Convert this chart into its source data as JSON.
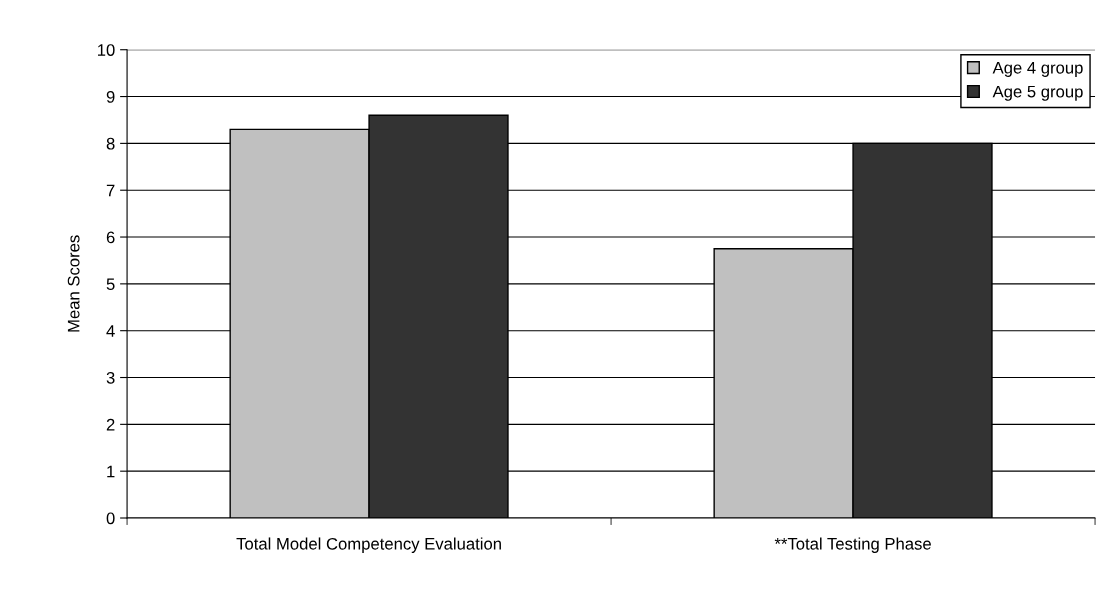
{
  "chart_data": {
    "type": "bar",
    "ylabel": "Mean Scores",
    "categories": [
      "Total Model Competency Evaluation",
      "**Total Testing Phase"
    ],
    "series": [
      {
        "name": "Age 4 group",
        "color": "#c0c0c0",
        "values": [
          8.3,
          5.75
        ]
      },
      {
        "name": "Age 5 group",
        "color": "#333333",
        "values": [
          8.6,
          8.0
        ]
      }
    ],
    "ylim": [
      0,
      10
    ],
    "yticks": [
      0,
      1,
      2,
      3,
      4,
      5,
      6,
      7,
      8,
      9,
      10
    ],
    "grid": "y",
    "legend": "top right"
  }
}
